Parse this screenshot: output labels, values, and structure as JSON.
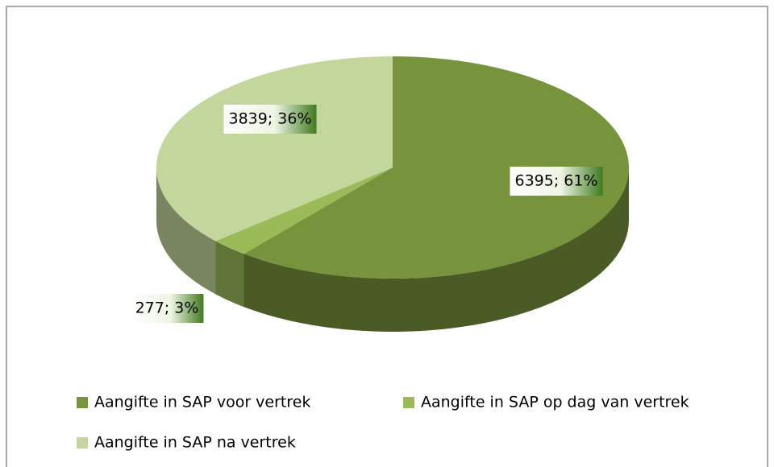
{
  "chart_data": {
    "type": "pie",
    "categories": [
      "Aangifte in SAP voor vertrek",
      "Aangifte in SAP op dag van vertrek",
      "Aangifte in SAP na vertrek"
    ],
    "values": [
      6395,
      277,
      3839
    ],
    "value_labels": [
      "6395; 61%",
      "277; 3%",
      "3839; 36%"
    ],
    "colors": [
      "#77933c",
      "#9bbb59",
      "#c3d69b"
    ],
    "legend": "bottom"
  }
}
